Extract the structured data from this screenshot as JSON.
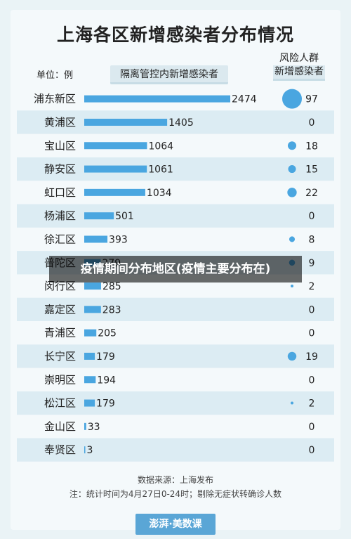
{
  "title": "上海各区新增感染者分布情况",
  "header": {
    "unit_label": "单位：例",
    "main_label": "隔离管控内新增感染者",
    "risk_label_1": "风险人群",
    "risk_label_2": "新增感染者"
  },
  "chart_data": {
    "type": "bar",
    "title": "上海各区新增感染者分布情况",
    "categories": [
      "浦东新区",
      "黄浦区",
      "宝山区",
      "静安区",
      "虹口区",
      "杨浦区",
      "徐汇区",
      "普陀区",
      "闵行区",
      "嘉定区",
      "青浦区",
      "长宁区",
      "崇明区",
      "松江区",
      "金山区",
      "奉贤区"
    ],
    "category_labels": [
      "浦东新区",
      "黄浦区",
      "宝山区",
      "静安区",
      "虹口区",
      "杨浦区",
      "徐汇区",
      "普陀区",
      "闵行区",
      "嘉定区",
      "青浦区",
      "长宁区",
      "崇明区",
      "松江区",
      "金山区",
      "奉贤区"
    ],
    "series": [
      {
        "name": "隔离管控内新增感染者",
        "values": [
          2474,
          1405,
          1064,
          1061,
          1034,
          501,
          393,
          279,
          285,
          283,
          205,
          179,
          194,
          179,
          33,
          3
        ],
        "value_labels": [
          "2474",
          "1405",
          "1064",
          "1061",
          "1034",
          "501",
          "393",
          "279",
          "285",
          "283",
          "205",
          "179",
          "194",
          "179",
          "33",
          "3"
        ]
      },
      {
        "name": "风险人群新增感染者",
        "values": [
          97,
          0,
          18,
          15,
          22,
          0,
          8,
          9,
          2,
          0,
          0,
          19,
          0,
          2,
          0,
          0
        ],
        "value_labels": [
          "97",
          "0",
          "18",
          "15",
          "22",
          "0",
          "8",
          "9",
          "2",
          "0",
          "0",
          "19",
          "0",
          "2",
          "0",
          "0"
        ]
      }
    ],
    "bar_color": "#4aa6e0",
    "bubble_color": "#4aa6e0",
    "stripe_color": "#dcecf3",
    "text_color": "#222222"
  },
  "footer": {
    "source": "数据来源：上海发布",
    "note": "注：统计时间为4月27日0-24时；剔除无症状转确诊人数"
  },
  "brand": "澎湃·美数课",
  "overlay_text": "疫情期间分布地区(疫情主要分布在)"
}
